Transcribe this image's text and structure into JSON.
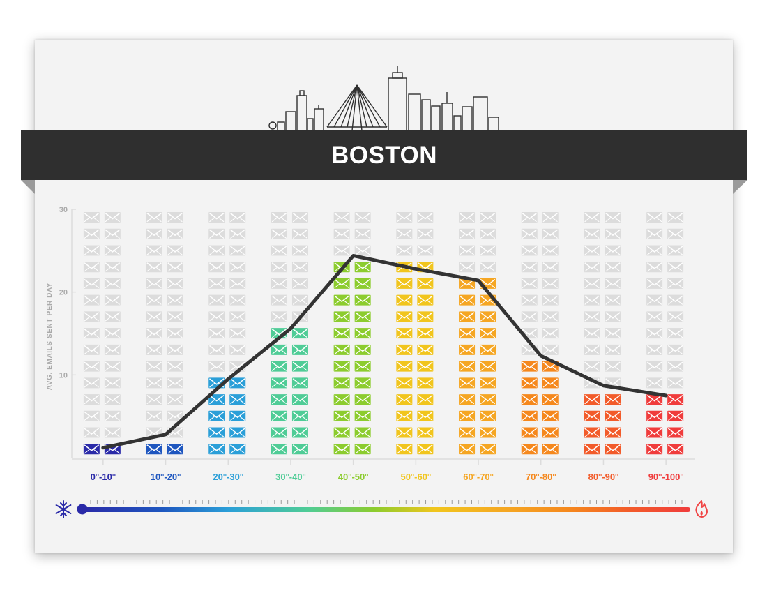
{
  "banner": {
    "title": "BOSTON"
  },
  "colors": {
    "card_bg": "#f3f3f3",
    "banner_bg": "#2f2f2f",
    "empty_envelope": "#dcdcdc",
    "line": "#333333",
    "axis_text": "#aaaaaa",
    "snowflake": "#2a2aa8",
    "flame": "#f04545"
  },
  "icons": {
    "skyline": "boston-skyline-icon",
    "cold": "snowflake-icon",
    "hot": "flame-icon",
    "cell": "envelope-icon"
  },
  "chart_data": {
    "type": "bar",
    "title": "",
    "xlabel": "",
    "ylabel": "AVG. EMAILS SENT PER DAY",
    "ylim": [
      0,
      30
    ],
    "yticks": [
      10,
      20,
      30
    ],
    "grid": false,
    "legend": "none",
    "categories": [
      "0°-10°",
      "10°-20°",
      "20°-30°",
      "30°-40°",
      "40°-50°",
      "50°-60°",
      "60°-70°",
      "70°-80°",
      "80°-90°",
      "90°-100°"
    ],
    "category_colors": [
      "#2a2aa8",
      "#1e56bf",
      "#2b9fd8",
      "#4fcc96",
      "#8ccc2e",
      "#f1c51d",
      "#f5a623",
      "#f5881d",
      "#f25b2a",
      "#f03c3c"
    ],
    "series": [
      {
        "type": "bar",
        "values": [
          1.2,
          2.8,
          9.5,
          15.6,
          24.4,
          23,
          21.4,
          11.9,
          8.7,
          7.5
        ]
      },
      {
        "type": "line",
        "values": [
          1.2,
          2.8,
          9.5,
          15.6,
          24.4,
          22.8,
          21.4,
          12.3,
          8.7,
          7.5
        ]
      }
    ]
  }
}
